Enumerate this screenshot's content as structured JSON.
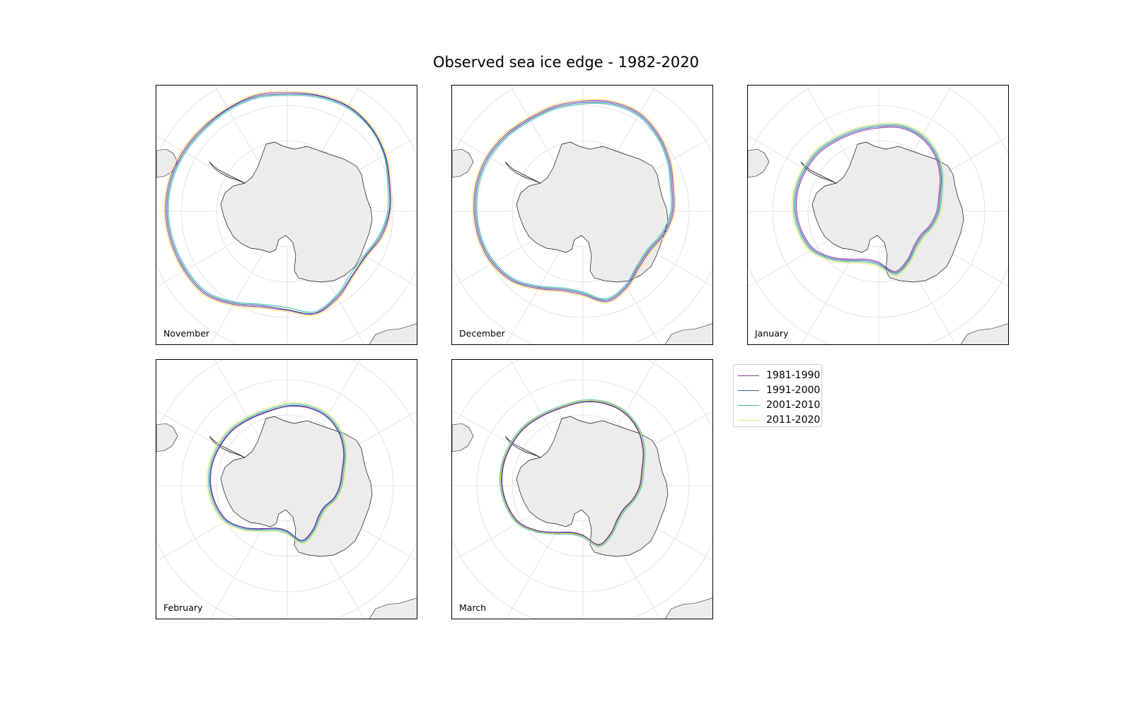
{
  "title": "Observed sea ice edge - 1982-2020",
  "series": [
    {
      "name": "1981-1990",
      "color": "#8d3a9b"
    },
    {
      "name": "1991-2000",
      "color": "#3c5f9c"
    },
    {
      "name": "2001-2010",
      "color": "#3cbcad"
    },
    {
      "name": "2011-2020",
      "color": "#f2e86b"
    }
  ],
  "panels": [
    {
      "label": "November",
      "ice_edge": [
        {
          "series": "1981-1990",
          "radii": [
            168,
            170,
            172,
            168,
            160,
            150,
            145,
            138,
            128,
            130,
            142,
            150,
            140,
            140,
            152,
            165,
            168,
            170,
            172,
            172,
            170,
            168,
            168,
            170
          ]
        },
        {
          "series": "1991-2000",
          "radii": [
            166,
            169,
            171,
            167,
            159,
            149,
            144,
            136,
            127,
            129,
            140,
            149,
            139,
            138,
            150,
            163,
            166,
            168,
            170,
            170,
            168,
            166,
            167,
            168
          ]
        },
        {
          "series": "2001-2010",
          "radii": [
            164,
            167,
            169,
            166,
            158,
            147,
            142,
            134,
            125,
            126,
            138,
            147,
            136,
            136,
            148,
            161,
            164,
            166,
            168,
            168,
            166,
            164,
            165,
            166
          ]
        },
        {
          "series": "2011-2020",
          "radii": [
            170,
            172,
            174,
            170,
            162,
            152,
            147,
            140,
            130,
            132,
            144,
            152,
            142,
            142,
            154,
            167,
            170,
            172,
            174,
            174,
            172,
            170,
            170,
            172
          ]
        }
      ]
    },
    {
      "label": "December",
      "ice_edge": [
        {
          "series": "1981-1990",
          "radii": [
            156,
            160,
            160,
            152,
            142,
            132,
            128,
            120,
            110,
            112,
            124,
            132,
            118,
            116,
            126,
            140,
            148,
            152,
            154,
            156,
            156,
            154,
            152,
            154
          ]
        },
        {
          "series": "1991-2000",
          "radii": [
            154,
            158,
            158,
            150,
            140,
            130,
            126,
            118,
            108,
            110,
            122,
            130,
            116,
            114,
            124,
            138,
            146,
            150,
            152,
            154,
            154,
            152,
            150,
            152
          ]
        },
        {
          "series": "2001-2010",
          "radii": [
            152,
            156,
            156,
            148,
            138,
            128,
            124,
            116,
            106,
            108,
            120,
            128,
            114,
            112,
            122,
            136,
            144,
            148,
            150,
            152,
            152,
            150,
            148,
            150
          ]
        },
        {
          "series": "2011-2020",
          "radii": [
            158,
            162,
            162,
            154,
            144,
            134,
            130,
            122,
            112,
            114,
            126,
            134,
            120,
            118,
            128,
            142,
            150,
            154,
            156,
            158,
            158,
            156,
            154,
            156
          ]
        }
      ]
    },
    {
      "label": "January",
      "ice_edge": [
        {
          "series": "1981-1990",
          "radii": [
            118,
            122,
            120,
            112,
            100,
            88,
            82,
            75,
            68,
            70,
            80,
            88,
            72,
            70,
            78,
            92,
            106,
            112,
            116,
            118,
            118,
            118,
            116,
            116
          ]
        },
        {
          "series": "1991-2000",
          "radii": [
            120,
            124,
            122,
            114,
            102,
            90,
            84,
            77,
            70,
            72,
            82,
            90,
            74,
            72,
            80,
            94,
            108,
            114,
            118,
            120,
            120,
            120,
            118,
            118
          ]
        },
        {
          "series": "2001-2010",
          "radii": [
            122,
            126,
            124,
            116,
            104,
            92,
            86,
            79,
            72,
            74,
            84,
            92,
            76,
            74,
            82,
            96,
            110,
            116,
            120,
            122,
            122,
            122,
            120,
            120
          ]
        },
        {
          "series": "2011-2020",
          "radii": [
            124,
            128,
            126,
            118,
            106,
            94,
            88,
            81,
            74,
            76,
            86,
            94,
            78,
            76,
            84,
            98,
            112,
            118,
            122,
            124,
            124,
            124,
            122,
            122
          ]
        }
      ]
    },
    {
      "label": "February",
      "ice_edge": [
        {
          "series": "1981-1990",
          "radii": [
            112,
            114,
            112,
            104,
            92,
            80,
            74,
            68,
            60,
            62,
            72,
            80,
            64,
            62,
            70,
            84,
            98,
            104,
            108,
            110,
            110,
            110,
            108,
            108
          ]
        },
        {
          "series": "1991-2000",
          "radii": [
            113,
            115,
            113,
            105,
            93,
            81,
            75,
            69,
            61,
            63,
            73,
            81,
            65,
            63,
            71,
            85,
            99,
            105,
            109,
            111,
            111,
            111,
            109,
            109
          ]
        },
        {
          "series": "2001-2010",
          "radii": [
            115,
            117,
            115,
            107,
            95,
            83,
            77,
            71,
            63,
            65,
            75,
            83,
            67,
            65,
            73,
            87,
            101,
            107,
            111,
            113,
            113,
            113,
            111,
            111
          ]
        },
        {
          "series": "2011-2020",
          "radii": [
            117,
            119,
            117,
            109,
            97,
            85,
            79,
            73,
            65,
            67,
            77,
            85,
            69,
            67,
            75,
            89,
            103,
            109,
            113,
            115,
            115,
            115,
            113,
            113
          ]
        }
      ]
    },
    {
      "label": "March",
      "ice_edge": [
        {
          "series": "1981-1990",
          "radii": [
            118,
            120,
            118,
            110,
            98,
            86,
            80,
            73,
            66,
            68,
            78,
            86,
            70,
            68,
            76,
            90,
            104,
            110,
            114,
            116,
            116,
            116,
            114,
            114
          ]
        },
        {
          "series": "1991-2000",
          "radii": [
            119,
            121,
            119,
            111,
            99,
            87,
            81,
            74,
            67,
            69,
            79,
            87,
            71,
            69,
            77,
            91,
            105,
            111,
            115,
            117,
            117,
            117,
            115,
            115
          ]
        },
        {
          "series": "2001-2010",
          "radii": [
            121,
            123,
            121,
            113,
            101,
            89,
            83,
            76,
            69,
            71,
            81,
            89,
            73,
            71,
            79,
            93,
            107,
            113,
            117,
            119,
            119,
            119,
            117,
            117
          ]
        },
        {
          "series": "2011-2020",
          "radii": [
            120,
            122,
            120,
            112,
            100,
            88,
            82,
            75,
            68,
            70,
            80,
            88,
            72,
            70,
            78,
            92,
            106,
            112,
            116,
            118,
            118,
            118,
            116,
            116
          ]
        }
      ]
    }
  ]
}
